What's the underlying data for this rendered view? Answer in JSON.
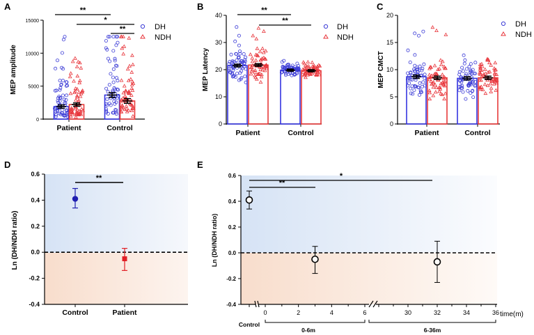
{
  "colors": {
    "dh": "#3b3bd6",
    "ndh": "#e8343a",
    "dh_bar": "#3535e0",
    "ndh_bar": "#e83a3a",
    "axis": "#000000",
    "panel_blue": "#dde7f6",
    "panel_orange": "#fae6da",
    "point_dark": "#1f1fb0",
    "point_red": "#e11f26"
  },
  "chart_data": [
    {
      "panel": "A",
      "type": "bar",
      "ylabel": "MEP amplitude",
      "categories": [
        "Patient",
        "Control"
      ],
      "ylim": [
        0,
        15000
      ],
      "yticks": [
        "0",
        "5000",
        "10000",
        "15000"
      ],
      "legend": [
        "DH",
        "NDH"
      ],
      "series": [
        {
          "name": "DH",
          "means": [
            1900,
            3650
          ],
          "errors": [
            250,
            350
          ]
        },
        {
          "name": "NDH",
          "means": [
            2200,
            2750
          ],
          "errors": [
            250,
            350
          ]
        }
      ],
      "significance": [
        "**",
        "*",
        "**"
      ]
    },
    {
      "panel": "B",
      "type": "bar",
      "ylabel": "MEP Latency",
      "categories": [
        "Patient",
        "Control"
      ],
      "ylim": [
        0,
        40
      ],
      "yticks": [
        "0",
        "10",
        "20",
        "30",
        "40"
      ],
      "legend": [
        "DH",
        "NDH"
      ],
      "series": [
        {
          "name": "DH",
          "means": [
            21.5,
            19.8
          ],
          "errors": [
            0.5,
            0.4
          ]
        },
        {
          "name": "NDH",
          "means": [
            21.7,
            19.6
          ],
          "errors": [
            0.5,
            0.4
          ]
        }
      ],
      "significance": [
        "**",
        "**"
      ]
    },
    {
      "panel": "C",
      "type": "bar",
      "ylabel": "MEP CMCT",
      "categories": [
        "Patient",
        "Control"
      ],
      "ylim": [
        0,
        20
      ],
      "yticks": [
        "0",
        "5",
        "10",
        "15",
        "20"
      ],
      "legend": [
        "DH",
        "NDH"
      ],
      "series": [
        {
          "name": "DH",
          "means": [
            8.7,
            8.4
          ],
          "errors": [
            0.3,
            0.3
          ]
        },
        {
          "name": "NDH",
          "means": [
            8.5,
            8.5
          ],
          "errors": [
            0.3,
            0.3
          ]
        }
      ]
    },
    {
      "panel": "D",
      "type": "scatter",
      "ylabel": "Ln (DH/NDH ratio)",
      "categories": [
        "Control",
        "Patient"
      ],
      "ylim": [
        -0.4,
        0.6
      ],
      "yticks": [
        "0.6",
        "0.4",
        "0.2",
        "0.0",
        "-0.2",
        "-0.4"
      ],
      "points": [
        {
          "category": "Control",
          "mean": 0.41,
          "low": 0.34,
          "high": 0.49
        },
        {
          "category": "Patient",
          "mean": -0.05,
          "low": -0.14,
          "high": 0.03
        }
      ],
      "significance": [
        "**"
      ]
    },
    {
      "panel": "E",
      "type": "scatter",
      "ylabel": "Ln (DH/NDH ratio)",
      "ylim": [
        -0.4,
        0.6
      ],
      "yticks": [
        "0.6",
        "0.4",
        "0.2",
        "0.0",
        "-0.2",
        "-0.4"
      ],
      "xlabel": "time(m)",
      "xticks_early": [
        "0",
        "2",
        "4",
        "6"
      ],
      "xticks_late": [
        "30",
        "32",
        "34",
        "36"
      ],
      "control_label": "Control",
      "group_labels": [
        "0-6m",
        "6-36m"
      ],
      "points": [
        {
          "label": "Control",
          "x": "Control",
          "mean": 0.41,
          "low": 0.34,
          "high": 0.48
        },
        {
          "label": "0-6m",
          "x": 3,
          "mean": -0.05,
          "low": -0.16,
          "high": 0.05
        },
        {
          "label": "6-36m",
          "x": 32,
          "mean": -0.07,
          "low": -0.23,
          "high": 0.09
        }
      ],
      "significance": [
        "**",
        "*"
      ]
    }
  ],
  "labels": {
    "A": "A",
    "B": "B",
    "C": "C",
    "D": "D",
    "E": "E",
    "dh": "DH",
    "ndh": "NDH",
    "sig2": "**",
    "sig1": "*"
  }
}
